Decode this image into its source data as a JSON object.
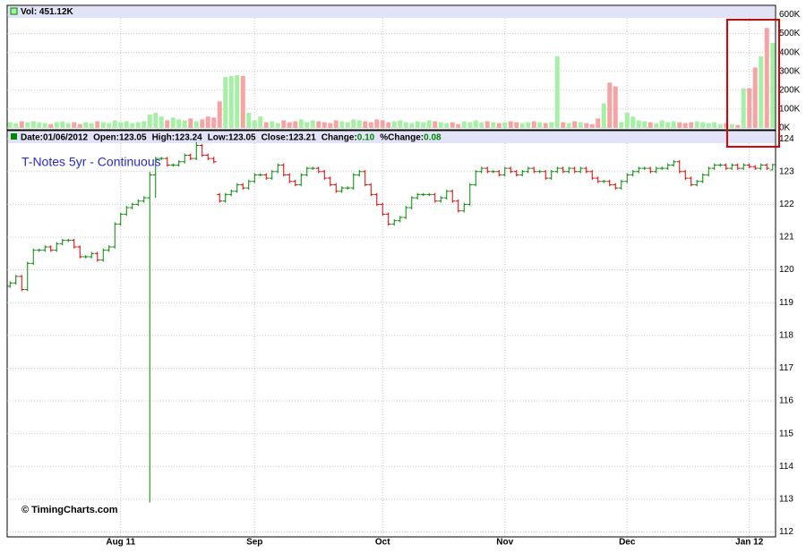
{
  "chart_data": [
    {
      "type": "bar",
      "title": "Vol: 451.12K",
      "up_color": "#a6f0a6",
      "down_color": "#f5a3a3",
      "header_color": "#e2e2f8",
      "ylim": [
        -10,
        650
      ],
      "yticks": [
        {
          "value": 0,
          "label": "0K"
        },
        {
          "value": 100,
          "label": "100K"
        },
        {
          "value": 200,
          "label": "200K"
        },
        {
          "value": 300,
          "label": "300K"
        },
        {
          "value": 400,
          "label": "400K"
        },
        {
          "value": 500,
          "label": "500K"
        },
        {
          "value": 600,
          "label": "600K"
        }
      ],
      "grid": true,
      "values": [
        30,
        25,
        35,
        30,
        35,
        30,
        25,
        20,
        30,
        35,
        25,
        30,
        20,
        30,
        25,
        35,
        30,
        25,
        40,
        30,
        35,
        25,
        30,
        35,
        70,
        80,
        60,
        40,
        55,
        45,
        40,
        50,
        35,
        45,
        60,
        55,
        140,
        270,
        275,
        280,
        275,
        80,
        40,
        60,
        30,
        35,
        25,
        40,
        30,
        35,
        45,
        30,
        40,
        35,
        30,
        25,
        40,
        35,
        30,
        45,
        40,
        35,
        30,
        45,
        40,
        30,
        35,
        40,
        30,
        25,
        35,
        30,
        40,
        35,
        30,
        25,
        30,
        20,
        35,
        30,
        40,
        30,
        35,
        30,
        25,
        30,
        35,
        30,
        25,
        30,
        35,
        30,
        25,
        30,
        380,
        30,
        25,
        35,
        30,
        25,
        20,
        50,
        130,
        240,
        220,
        30,
        80,
        60,
        40,
        35,
        30,
        25,
        40,
        30,
        35,
        30,
        25,
        30,
        35,
        30,
        25,
        30,
        20,
        25,
        20,
        15,
        210,
        210,
        320,
        380,
        530,
        451.12
      ]
    },
    {
      "type": "ohlc",
      "title": "T-Notes 5yr - Continuous",
      "credit": "© TimingCharts.com",
      "up_color": "#008a00",
      "down_color": "#e00000",
      "header_color": "#e2e2f8",
      "header": [
        {
          "label": "Date:",
          "value": "01/06/2012"
        },
        {
          "label": "Open:",
          "value": "123.05"
        },
        {
          "label": "High:",
          "value": "123.24"
        },
        {
          "label": "Low:",
          "value": "123.05"
        },
        {
          "label": "Close:",
          "value": "123.21"
        },
        {
          "label": "Change:",
          "value": "0.10"
        },
        {
          "label": "%Change:",
          "value": "0.08"
        }
      ],
      "ylim": [
        111.85,
        124.25
      ],
      "yticks": [
        112,
        113,
        114,
        115,
        116,
        117,
        118,
        119,
        120,
        121,
        122,
        123,
        124
      ],
      "grid": true,
      "categories": [
        null,
        null,
        null,
        null,
        null,
        null,
        null,
        null,
        null,
        null,
        null,
        null,
        null,
        null,
        null,
        null,
        null,
        null,
        null,
        "Aug 11",
        null,
        null,
        null,
        null,
        null,
        null,
        null,
        null,
        null,
        null,
        null,
        null,
        null,
        null,
        null,
        null,
        null,
        null,
        null,
        null,
        null,
        null,
        "Sep",
        null,
        null,
        null,
        null,
        null,
        null,
        null,
        null,
        null,
        null,
        null,
        null,
        null,
        null,
        null,
        null,
        null,
        null,
        null,
        null,
        null,
        "Oct",
        null,
        null,
        null,
        null,
        null,
        null,
        null,
        null,
        null,
        null,
        null,
        null,
        null,
        null,
        null,
        null,
        null,
        null,
        null,
        null,
        "Nov",
        null,
        null,
        null,
        null,
        null,
        null,
        null,
        null,
        null,
        null,
        null,
        null,
        null,
        null,
        null,
        null,
        null,
        null,
        null,
        null,
        "Dec",
        null,
        null,
        null,
        null,
        null,
        null,
        null,
        null,
        null,
        null,
        null,
        null,
        null,
        null,
        null,
        null,
        null,
        null,
        null,
        null,
        "Jan 12",
        null,
        null,
        null,
        null
      ],
      "open": [
        119.5,
        119.6,
        119.8,
        119.4,
        120.2,
        120.6,
        120.6,
        120.7,
        120.6,
        120.8,
        120.9,
        120.9,
        120.7,
        120.4,
        120.4,
        120.5,
        120.3,
        120.6,
        120.7,
        121.4,
        121.7,
        121.9,
        122.0,
        122.1,
        122.2,
        122.9,
        123.4,
        123.4,
        123.2,
        123.2,
        123.3,
        123.5,
        123.4,
        123.8,
        123.5,
        123.4,
        122.3,
        122.1,
        122.3,
        122.4,
        122.6,
        122.5,
        122.7,
        122.9,
        122.9,
        122.8,
        123.0,
        123.2,
        122.9,
        122.7,
        122.6,
        122.9,
        123.1,
        123.1,
        123.0,
        122.8,
        122.6,
        122.4,
        122.5,
        122.5,
        122.9,
        123.0,
        122.6,
        122.3,
        122.0,
        121.7,
        121.4,
        121.5,
        121.6,
        121.9,
        122.2,
        122.3,
        122.3,
        122.3,
        122.1,
        122.2,
        122.4,
        122.1,
        121.8,
        122.0,
        122.6,
        123.0,
        123.1,
        123.0,
        123.0,
        122.9,
        123.1,
        123.0,
        122.9,
        123.0,
        123.1,
        123.0,
        123.0,
        122.8,
        123.0,
        123.1,
        123.0,
        123.1,
        123.0,
        123.1,
        123.0,
        122.8,
        122.7,
        122.7,
        122.6,
        122.5,
        122.7,
        122.9,
        123.0,
        123.1,
        123.1,
        123.0,
        123.1,
        123.1,
        123.2,
        123.3,
        123.0,
        122.8,
        122.6,
        122.7,
        122.9,
        123.1,
        123.2,
        123.2,
        123.1,
        123.2,
        123.1,
        123.2,
        123.15,
        123.1,
        123.2,
        123.05
      ],
      "high": [
        119.65,
        119.85,
        119.85,
        120.25,
        120.65,
        120.65,
        120.75,
        120.75,
        120.85,
        120.95,
        120.95,
        120.95,
        120.75,
        120.45,
        120.55,
        120.55,
        120.65,
        120.75,
        121.45,
        121.75,
        121.95,
        122.05,
        122.15,
        122.25,
        123.0,
        123.45,
        123.45,
        123.45,
        123.25,
        123.35,
        123.55,
        123.55,
        123.9,
        123.85,
        123.55,
        123.45,
        122.35,
        122.35,
        122.45,
        122.65,
        122.65,
        122.75,
        122.95,
        122.95,
        122.95,
        123.05,
        123.25,
        123.25,
        122.95,
        122.75,
        122.95,
        123.15,
        123.15,
        123.15,
        123.05,
        122.85,
        122.65,
        122.55,
        122.55,
        122.95,
        123.05,
        123.05,
        122.65,
        122.35,
        122.05,
        121.75,
        121.55,
        121.65,
        121.95,
        122.25,
        122.35,
        122.35,
        122.35,
        122.35,
        122.25,
        122.45,
        122.45,
        122.15,
        122.05,
        122.65,
        123.05,
        123.15,
        123.15,
        123.05,
        123.05,
        123.15,
        123.15,
        123.05,
        123.05,
        123.15,
        123.15,
        123.05,
        123.05,
        123.05,
        123.15,
        123.15,
        123.15,
        123.15,
        123.15,
        123.15,
        123.05,
        122.85,
        122.75,
        122.75,
        122.65,
        122.75,
        122.95,
        123.05,
        123.15,
        123.15,
        123.15,
        123.15,
        123.15,
        123.25,
        123.35,
        123.35,
        123.05,
        122.85,
        122.75,
        122.95,
        123.15,
        123.25,
        123.25,
        123.25,
        123.25,
        123.25,
        123.25,
        123.25,
        123.2,
        123.25,
        123.25,
        123.24
      ],
      "low": [
        119.45,
        119.55,
        119.35,
        119.35,
        120.15,
        120.55,
        120.55,
        120.55,
        120.55,
        120.75,
        120.85,
        120.65,
        120.35,
        120.35,
        120.35,
        120.25,
        120.25,
        120.55,
        120.65,
        121.35,
        121.65,
        121.85,
        121.95,
        122.05,
        112.9,
        122.2,
        123.35,
        123.15,
        123.15,
        123.15,
        123.25,
        123.35,
        123.35,
        123.45,
        123.35,
        123.25,
        122.05,
        122.05,
        122.25,
        122.35,
        122.45,
        122.45,
        122.65,
        122.85,
        122.75,
        122.75,
        122.95,
        122.85,
        122.65,
        122.55,
        122.55,
        122.85,
        123.05,
        122.95,
        122.75,
        122.55,
        122.35,
        122.35,
        122.45,
        122.45,
        122.85,
        122.55,
        122.25,
        121.95,
        121.65,
        121.35,
        121.35,
        121.45,
        121.55,
        121.85,
        122.15,
        122.25,
        122.25,
        122.05,
        122.05,
        122.15,
        122.05,
        121.75,
        121.75,
        121.95,
        122.55,
        122.95,
        122.95,
        122.95,
        122.85,
        122.85,
        122.95,
        122.85,
        122.85,
        122.95,
        122.95,
        122.95,
        122.75,
        122.75,
        122.95,
        122.95,
        122.95,
        122.95,
        122.95,
        122.95,
        122.75,
        122.65,
        122.65,
        122.55,
        122.45,
        122.45,
        122.65,
        122.85,
        122.95,
        123.05,
        122.95,
        122.95,
        123.05,
        123.05,
        123.15,
        122.95,
        122.75,
        122.55,
        122.55,
        122.65,
        122.85,
        123.05,
        123.15,
        123.05,
        123.05,
        123.05,
        123.05,
        123.1,
        123.05,
        123.05,
        123.05,
        123.05
      ],
      "close": [
        119.6,
        119.8,
        119.4,
        120.2,
        120.6,
        120.6,
        120.7,
        120.6,
        120.8,
        120.9,
        120.9,
        120.7,
        120.4,
        120.4,
        120.5,
        120.3,
        120.6,
        120.7,
        121.4,
        121.7,
        121.9,
        122.0,
        122.1,
        122.2,
        122.9,
        123.4,
        123.4,
        123.2,
        123.2,
        123.3,
        123.5,
        123.4,
        123.8,
        123.5,
        123.4,
        123.3,
        122.1,
        122.3,
        122.4,
        122.6,
        122.5,
        122.7,
        122.9,
        122.9,
        122.8,
        123.0,
        123.2,
        122.9,
        122.7,
        122.6,
        122.9,
        123.1,
        123.1,
        123.0,
        122.8,
        122.6,
        122.4,
        122.5,
        122.5,
        122.9,
        123.0,
        122.6,
        122.3,
        122.0,
        121.7,
        121.4,
        121.5,
        121.6,
        121.9,
        122.2,
        122.3,
        122.3,
        122.3,
        122.1,
        122.2,
        122.4,
        122.1,
        121.8,
        122.0,
        122.6,
        123.0,
        123.1,
        123.0,
        123.0,
        122.9,
        123.1,
        123.0,
        122.9,
        123.0,
        123.1,
        123.0,
        123.0,
        122.8,
        123.0,
        123.1,
        123.0,
        123.1,
        123.0,
        123.1,
        123.0,
        122.8,
        122.7,
        122.7,
        122.6,
        122.5,
        122.7,
        122.9,
        123.0,
        123.1,
        123.1,
        123.0,
        123.1,
        123.1,
        123.2,
        123.3,
        123.0,
        122.8,
        122.6,
        122.7,
        122.9,
        123.1,
        123.2,
        123.2,
        123.1,
        123.2,
        123.1,
        123.2,
        123.15,
        123.1,
        123.2,
        123.1,
        123.21
      ]
    }
  ]
}
